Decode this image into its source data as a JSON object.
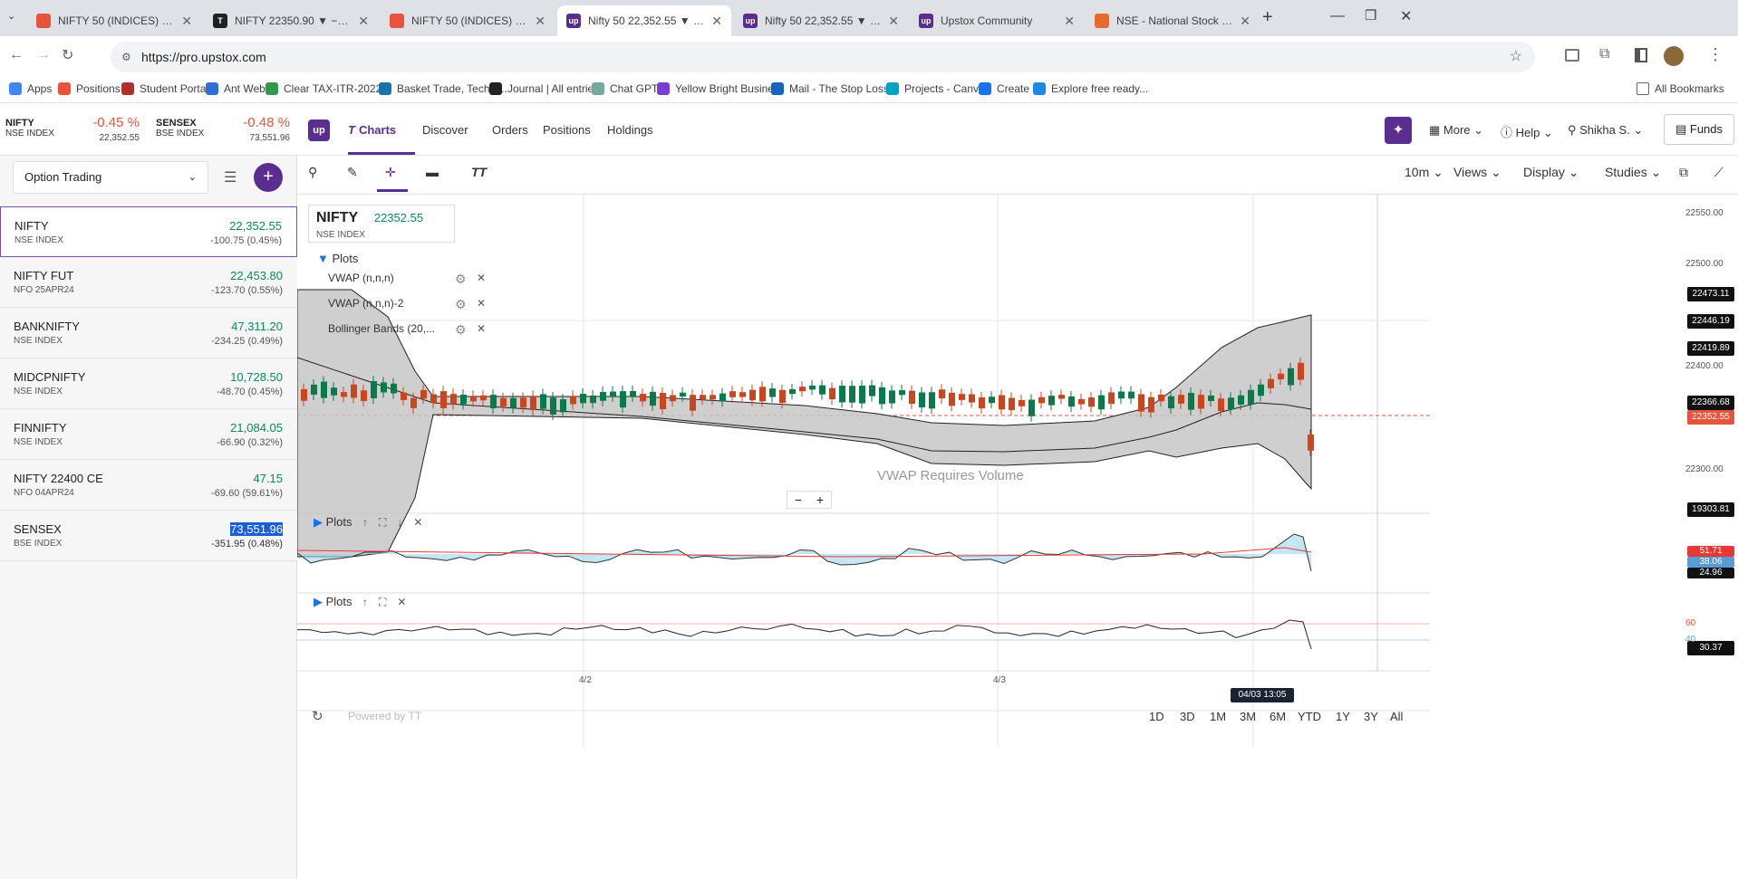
{
  "browser": {
    "tabs": [
      {
        "title": "NIFTY 50 (INDICES) 22352.55 - ",
        "color": "#e8533b",
        "glyph": "",
        "active": false
      },
      {
        "title": "NIFTY 22350.90 ▼ −0.46% Nifty",
        "color": "#202124",
        "glyph": "T",
        "active": false
      },
      {
        "title": "NIFTY 50 (INDICES) 22352.55 - ",
        "color": "#e8533b",
        "glyph": "",
        "active": false
      },
      {
        "title": "Nifty 50 22,352.55 ▼ -0.45%",
        "color": "#5a2d91",
        "glyph": "up",
        "active": true
      },
      {
        "title": "Nifty 50 22,352.55 ▼ -0.45%",
        "color": "#5a2d91",
        "glyph": "up",
        "active": false
      },
      {
        "title": "Upstox Community",
        "color": "#5a2d91",
        "glyph": "up",
        "active": false
      },
      {
        "title": "NSE - National Stock Exchange",
        "color": "#e86a2a",
        "glyph": "",
        "active": false
      }
    ],
    "url": "https://pro.upstox.com",
    "bookmarks": [
      {
        "label": "Apps",
        "color": "#4285f4"
      },
      {
        "label": "Positions",
        "color": "#e8533b"
      },
      {
        "label": "Student Portal",
        "color": "#b0302c"
      },
      {
        "label": "Ant Web",
        "color": "#2f6fd6"
      },
      {
        "label": "Clear TAX-ITR-2022...",
        "color": "#2e9a4a"
      },
      {
        "label": "Basket Trade, Techni...",
        "color": "#1a73a8"
      },
      {
        "label": "Journal | All entries",
        "color": "#222"
      },
      {
        "label": "Chat GPT",
        "color": "#74aa9c"
      },
      {
        "label": "Yellow Bright Busine...",
        "color": "#7a3fd1"
      },
      {
        "label": "Mail - The Stop Loss...",
        "color": "#1565c0"
      },
      {
        "label": "Projects - Canva",
        "color": "#00a3c4"
      },
      {
        "label": "Create",
        "color": "#1a73e8"
      },
      {
        "label": "Explore free ready...",
        "color": "#1e88e5"
      }
    ],
    "all_bookmarks": "All Bookmarks"
  },
  "header": {
    "indices": [
      {
        "name": "NIFTY",
        "exchange": "NSE INDEX",
        "change": "-0.45 %",
        "price": "22,352.55"
      },
      {
        "name": "SENSEX",
        "exchange": "BSE INDEX",
        "change": "-0.48 %",
        "price": "73,551.96"
      }
    ],
    "logo": "up",
    "nav": [
      "Charts",
      "Discover",
      "Orders",
      "Positions",
      "Holdings"
    ],
    "more": "More",
    "help": "Help",
    "user": "Shikha S.",
    "funds": "Funds"
  },
  "watchlist": {
    "name": "Option Trading",
    "items": [
      {
        "name": "NIFTY",
        "exchange": "NSE INDEX",
        "price": "22,352.55",
        "change": "-100.75 (0.45%)"
      },
      {
        "name": "NIFTY FUT",
        "exchange": "NFO 25APR24",
        "price": "22,453.80",
        "change": "-123.70 (0.55%)"
      },
      {
        "name": "BANKNIFTY",
        "exchange": "NSE INDEX",
        "price": "47,311.20",
        "change": "-234.25 (0.49%)"
      },
      {
        "name": "MIDCPNIFTY",
        "exchange": "NSE INDEX",
        "price": "10,728.50",
        "change": "-48.70 (0.45%)"
      },
      {
        "name": "FINNIFTY",
        "exchange": "NSE INDEX",
        "price": "21,084.05",
        "change": "-66.90 (0.32%)"
      },
      {
        "name": "NIFTY 22400 CE",
        "exchange": "NFO 04APR24",
        "price": "47.15",
        "change": "-69.60 (59.61%)"
      },
      {
        "name": "SENSEX",
        "exchange": "BSE INDEX",
        "price": "73,551.96",
        "change": "-351.95 (0.48%)"
      }
    ]
  },
  "chart": {
    "toolbar": {
      "interval": "10m",
      "views": "Views",
      "display": "Display",
      "studies": "Studies"
    },
    "symbol": {
      "name": "NIFTY",
      "exchange": "NSE INDEX",
      "price": "22352.55"
    },
    "plots_title": "Plots",
    "studies": [
      "VWAP (n,n,n)",
      "VWAP (n,n,n)-2",
      "Bollinger Bands (20,..."
    ],
    "vwap_note": "VWAP Requires Volume",
    "price_axis": [
      "22550.00",
      "22500.00",
      "22400.00",
      "22300.00"
    ],
    "price_tags": [
      {
        "v": "22473.11",
        "c": "#111"
      },
      {
        "v": "22446.19",
        "c": "#111"
      },
      {
        "v": "22419.89",
        "c": "#111"
      },
      {
        "v": "22366.68",
        "c": "#111"
      },
      {
        "v": "22352.55",
        "c": "#e8533b"
      },
      {
        "v": "19303.81",
        "c": "#111"
      }
    ],
    "panel2_tags": [
      {
        "v": "51.71",
        "c": "#e53935"
      },
      {
        "v": "38.06",
        "c": "#5b9bd5"
      },
      {
        "v": "24.96",
        "c": "#111"
      }
    ],
    "panel3_axis": [
      "60",
      "40"
    ],
    "panel3_tag": {
      "v": "30.37",
      "c": "#111"
    },
    "date_labels": [
      "4/2",
      "4/3"
    ],
    "crosshair_time": "04/03 13:05",
    "ranges": [
      "1D",
      "3D",
      "1M",
      "3M",
      "6M",
      "YTD",
      "1Y",
      "3Y",
      "All"
    ],
    "powered": "Powered by TT"
  }
}
